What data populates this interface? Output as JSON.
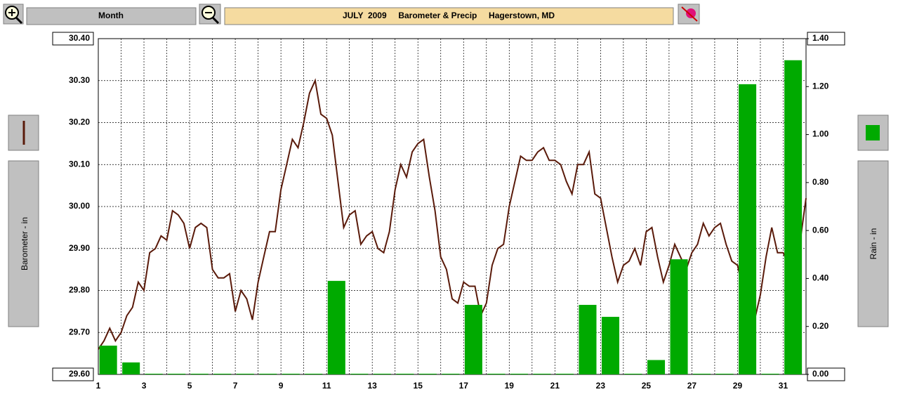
{
  "toolbar": {
    "period": "Month"
  },
  "chart_data": {
    "type": "combo",
    "title": "JULY  2009     Barometer & Precip     Hagerstown, MD",
    "xlim": [
      1,
      32
    ],
    "xticks": [
      1,
      3,
      5,
      7,
      9,
      11,
      13,
      15,
      17,
      19,
      21,
      23,
      25,
      27,
      29,
      31
    ],
    "xminorticks": [
      2,
      4,
      6,
      8,
      10,
      12,
      14,
      16,
      18,
      20,
      22,
      24,
      26,
      28,
      30,
      32
    ],
    "ylim": [
      29.6,
      30.4
    ],
    "yticks": [
      {
        "value": 29.6,
        "label": "29.60"
      },
      {
        "value": 29.7,
        "label": "29.70"
      },
      {
        "value": 29.8,
        "label": "29.80"
      },
      {
        "value": 29.9,
        "label": "29.90"
      },
      {
        "value": 30.0,
        "label": "30.00"
      },
      {
        "value": 30.1,
        "label": "30.10"
      },
      {
        "value": 30.2,
        "label": "30.20"
      },
      {
        "value": 30.3,
        "label": "30.30"
      },
      {
        "value": 30.4,
        "label": "30.40"
      }
    ],
    "y2lim": [
      0,
      1.4
    ],
    "y2ticks": [
      {
        "value": 0,
        "label": "0.00"
      },
      {
        "value": 0.2,
        "label": "0.20"
      },
      {
        "value": 0.4,
        "label": "0.40"
      },
      {
        "value": 0.6,
        "label": "0.60"
      },
      {
        "value": 0.8,
        "label": "0.80"
      },
      {
        "value": 1.0,
        "label": "1.00"
      },
      {
        "value": 1.2,
        "label": "1.20"
      },
      {
        "value": 1.4,
        "label": "1.40"
      }
    ],
    "grid": true,
    "series": [
      {
        "name": "Barometer - in",
        "type": "line",
        "color": "#5a1a0a",
        "x": [
          1,
          1.25,
          1.5,
          1.75,
          2,
          2.25,
          2.5,
          2.75,
          3,
          3.25,
          3.5,
          3.75,
          4,
          4.25,
          4.5,
          4.75,
          5,
          5.25,
          5.5,
          5.75,
          6,
          6.25,
          6.5,
          6.75,
          7,
          7.25,
          7.5,
          7.75,
          8,
          8.25,
          8.5,
          8.75,
          9,
          9.25,
          9.5,
          9.75,
          10,
          10.25,
          10.5,
          10.75,
          11,
          11.25,
          11.5,
          11.75,
          12,
          12.25,
          12.5,
          12.75,
          13,
          13.25,
          13.5,
          13.75,
          14,
          14.25,
          14.5,
          14.75,
          15,
          15.25,
          15.5,
          15.75,
          16,
          16.25,
          16.5,
          16.75,
          17,
          17.25,
          17.5,
          17.75,
          18,
          18.25,
          18.5,
          18.75,
          19,
          19.25,
          19.5,
          19.75,
          20,
          20.25,
          20.5,
          20.75,
          21,
          21.25,
          21.5,
          21.75,
          22,
          22.25,
          22.5,
          22.75,
          23,
          23.25,
          23.5,
          23.75,
          24,
          24.25,
          24.5,
          24.75,
          25,
          25.25,
          25.5,
          25.75,
          26,
          26.25,
          26.5,
          26.75,
          27,
          27.25,
          27.5,
          27.75,
          28,
          28.25,
          28.5,
          28.75,
          29,
          29.25,
          29.5,
          29.75,
          30,
          30.25,
          30.5,
          30.75,
          31,
          31.25,
          31.5,
          31.75,
          32
        ],
        "values": [
          29.66,
          29.68,
          29.71,
          29.68,
          29.7,
          29.74,
          29.76,
          29.82,
          29.8,
          29.89,
          29.9,
          29.93,
          29.92,
          29.99,
          29.98,
          29.96,
          29.9,
          29.95,
          29.96,
          29.95,
          29.85,
          29.83,
          29.83,
          29.84,
          29.75,
          29.8,
          29.78,
          29.73,
          29.82,
          29.88,
          29.94,
          29.94,
          30.04,
          30.1,
          30.16,
          30.14,
          30.2,
          30.27,
          30.3,
          30.22,
          30.21,
          30.17,
          30.06,
          29.95,
          29.98,
          29.99,
          29.91,
          29.93,
          29.94,
          29.9,
          29.89,
          29.94,
          30.04,
          30.1,
          30.07,
          30.13,
          30.15,
          30.16,
          30.07,
          29.99,
          29.88,
          29.85,
          29.78,
          29.77,
          29.82,
          29.81,
          29.81,
          29.74,
          29.77,
          29.86,
          29.9,
          29.91,
          30.0,
          30.06,
          30.12,
          30.11,
          30.11,
          30.13,
          30.14,
          30.11,
          30.11,
          30.1,
          30.06,
          30.03,
          30.1,
          30.1,
          30.13,
          30.03,
          30.02,
          29.95,
          29.88,
          29.82,
          29.86,
          29.87,
          29.9,
          29.86,
          29.94,
          29.95,
          29.88,
          29.82,
          29.86,
          29.91,
          29.88,
          29.85,
          29.89,
          29.91,
          29.96,
          29.93,
          29.95,
          29.96,
          29.91,
          29.87,
          29.86,
          29.8,
          29.79,
          29.73,
          29.79,
          29.88,
          29.95,
          29.89,
          29.89,
          29.86,
          29.85,
          29.92,
          30.02
        ]
      },
      {
        "name": "Rain - in",
        "type": "bar",
        "axis": "y2",
        "color": "#00aa00",
        "x": [
          1,
          2,
          3,
          4,
          5,
          6,
          7,
          8,
          9,
          10,
          11,
          12,
          13,
          14,
          15,
          16,
          17,
          18,
          19,
          20,
          21,
          22,
          23,
          24,
          25,
          26,
          27,
          28,
          29,
          30,
          31
        ],
        "values": [
          0.12,
          0.05,
          0,
          0,
          0,
          0,
          0,
          0,
          0,
          0,
          0.39,
          0,
          0,
          0,
          0,
          0,
          0.29,
          0,
          0,
          0,
          0,
          0.29,
          0.24,
          0,
          0.06,
          0.48,
          0,
          0,
          1.21,
          0,
          1.31
        ]
      }
    ]
  }
}
